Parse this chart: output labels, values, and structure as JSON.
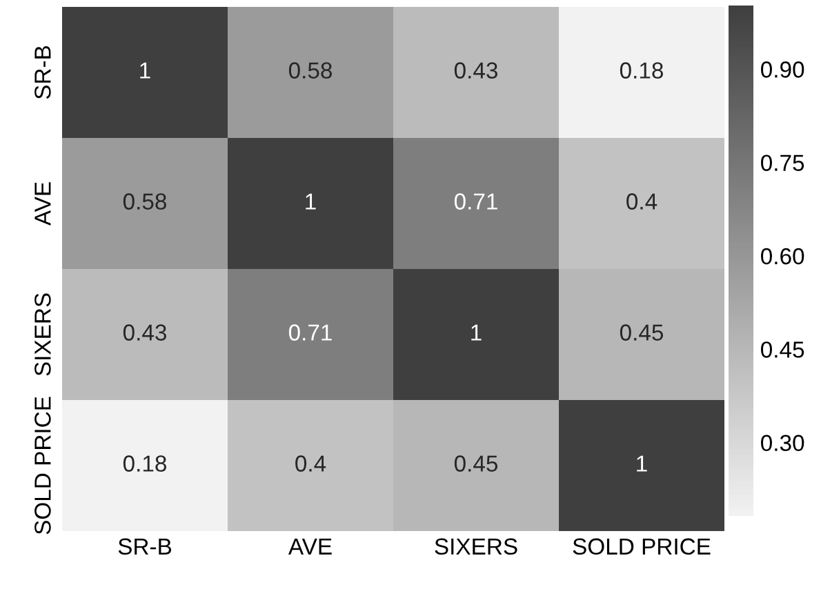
{
  "chart_data": {
    "type": "heatmap",
    "categories": [
      "SR-B",
      "AVE",
      "SIXERS",
      "SOLD PRICE"
    ],
    "y_categories": [
      "SR-B",
      "AVE",
      "SIXERS",
      "SOLD PRICE"
    ],
    "cells": [
      [
        1,
        0.58,
        0.43,
        0.18
      ],
      [
        0.58,
        1,
        0.71,
        0.4
      ],
      [
        0.43,
        0.71,
        1,
        0.45
      ],
      [
        0.18,
        0.4,
        0.45,
        1
      ]
    ],
    "data_labels": true,
    "clim": [
      0.18,
      1
    ],
    "cticks": [
      {
        "value": 0.3,
        "label": "0.30"
      },
      {
        "value": 0.45,
        "label": "0.45"
      },
      {
        "value": 0.6,
        "label": "0.60"
      },
      {
        "value": 0.75,
        "label": "0.75"
      },
      {
        "value": 0.9,
        "label": "0.90"
      }
    ]
  }
}
